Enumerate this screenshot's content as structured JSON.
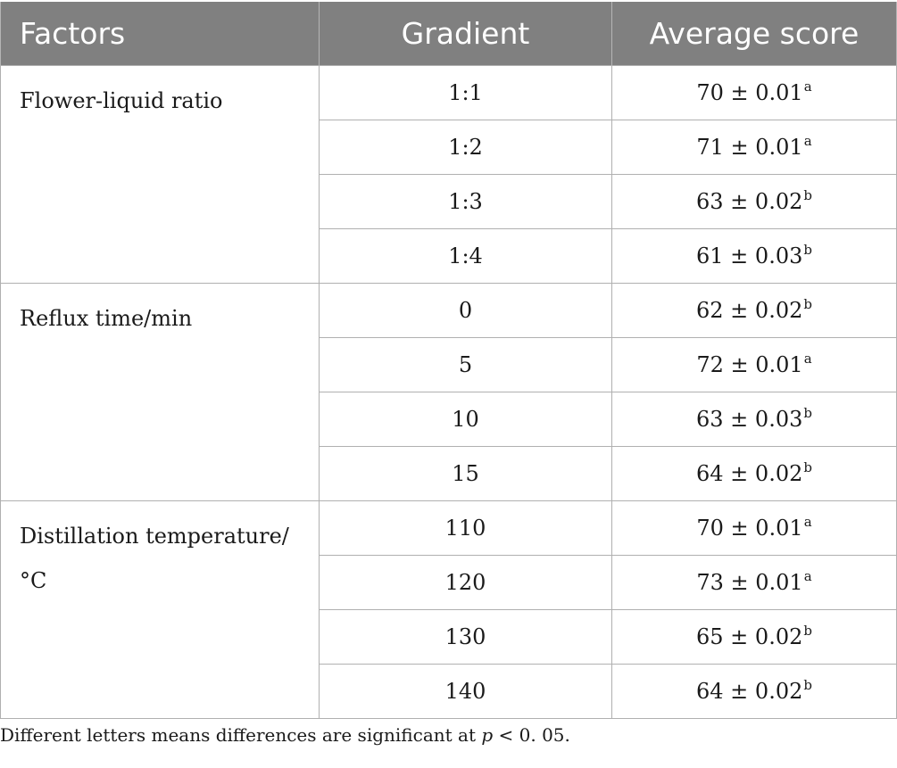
{
  "table": {
    "headers": [
      "Factors",
      "Gradient",
      "Average score"
    ],
    "groups": [
      {
        "factor": "Flower-liquid ratio",
        "rows": [
          {
            "gradient": "1:1",
            "score": "70 ± 0.01",
            "letter": "a"
          },
          {
            "gradient": "1:2",
            "score": "71 ± 0.01",
            "letter": "a"
          },
          {
            "gradient": "1:3",
            "score": "63 ± 0.02",
            "letter": "b"
          },
          {
            "gradient": "1:4",
            "score": "61 ± 0.03",
            "letter": "b"
          }
        ]
      },
      {
        "factor": "Reflux time/min",
        "rows": [
          {
            "gradient": "0",
            "score": "62 ± 0.02",
            "letter": "b"
          },
          {
            "gradient": "5",
            "score": "72 ± 0.01",
            "letter": "a"
          },
          {
            "gradient": "10",
            "score": "63 ± 0.03",
            "letter": "b"
          },
          {
            "gradient": "15",
            "score": "64 ± 0.02",
            "letter": "b"
          }
        ]
      },
      {
        "factor": "Distillation temperature/°C",
        "rows": [
          {
            "gradient": "110",
            "score": "70 ± 0.01",
            "letter": "a"
          },
          {
            "gradient": "120",
            "score": "73 ± 0.01",
            "letter": "a"
          },
          {
            "gradient": "130",
            "score": "65 ± 0.02",
            "letter": "b"
          },
          {
            "gradient": "140",
            "score": "64 ± 0.02",
            "letter": "b"
          }
        ]
      }
    ]
  },
  "footnote": {
    "prefix": "Different letters means differences are significant at ",
    "variable": "p",
    "suffix": " < 0. 05."
  }
}
